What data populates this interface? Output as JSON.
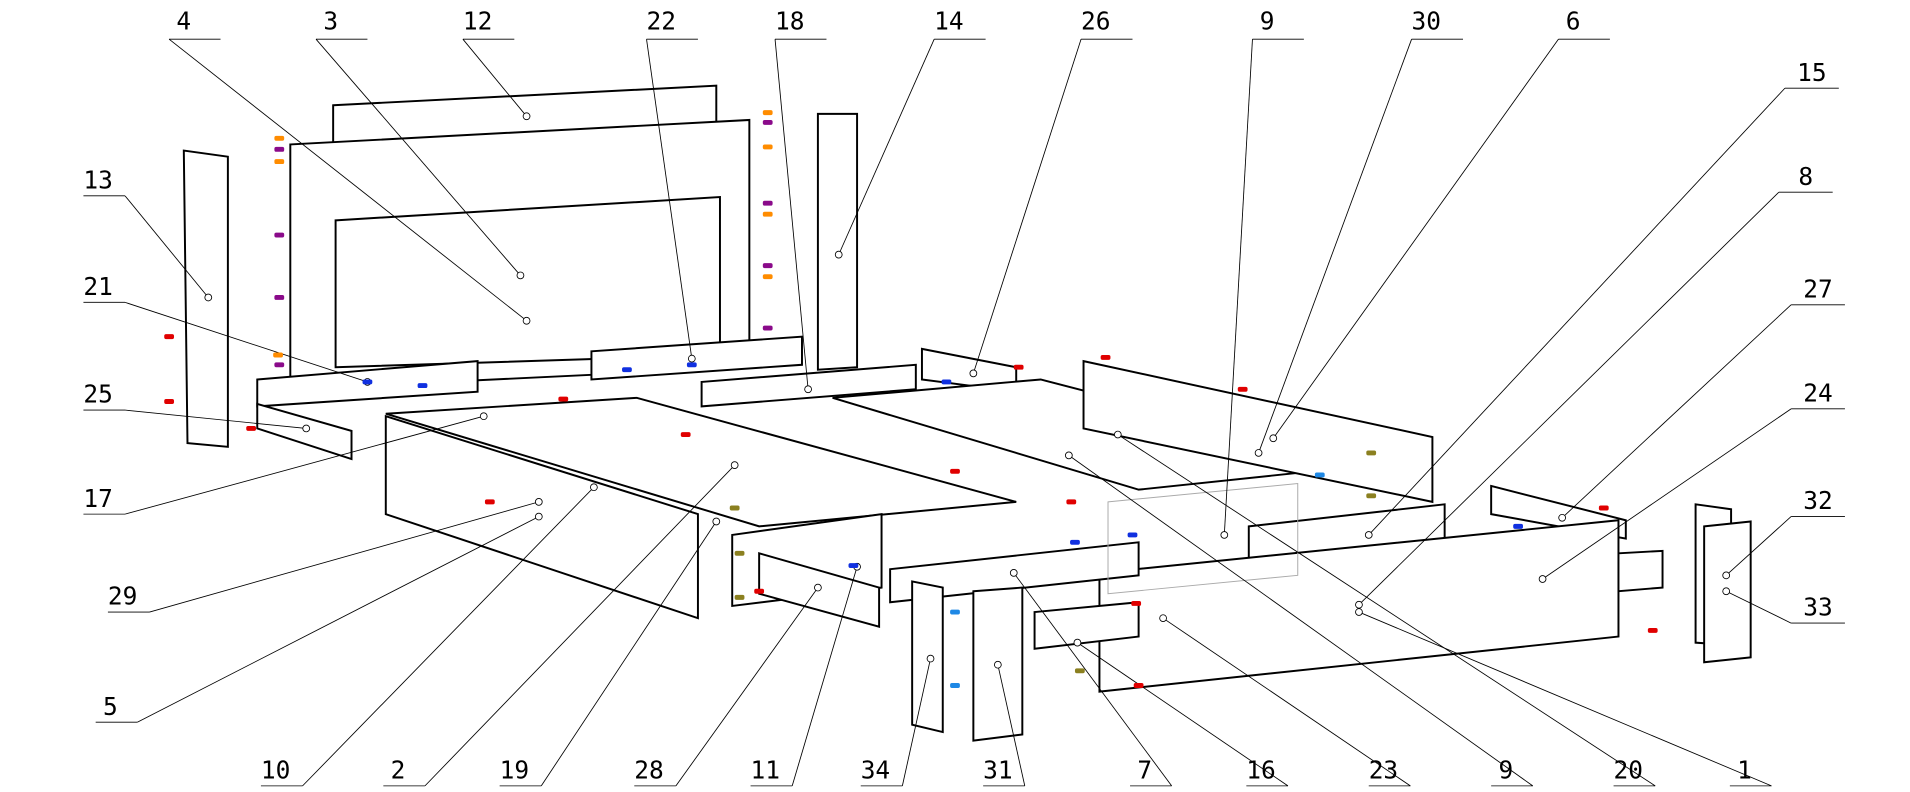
{
  "diagram": {
    "type": "exploded assembly drawing",
    "callouts": [
      "4",
      "3",
      "12",
      "22",
      "18",
      "14",
      "26",
      "9",
      "30",
      "6",
      "15",
      "8",
      "27",
      "24",
      "32",
      "33",
      "13",
      "21",
      "25",
      "17",
      "29",
      "5",
      "10",
      "2",
      "19",
      "28",
      "11",
      "34",
      "31",
      "7",
      "16",
      "23",
      "9",
      "20",
      "1"
    ],
    "fastener_colors": {
      "red": "#e00000",
      "blue": "#1030e0",
      "light_blue": "#1e88e5",
      "purple": "#8a0a8a",
      "orange": "#ff8c00",
      "olive": "#8b8020"
    }
  }
}
